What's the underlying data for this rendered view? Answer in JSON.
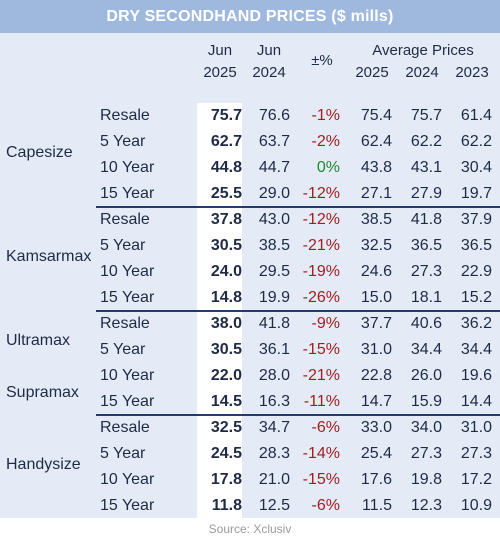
{
  "title": "DRY SECONDHAND PRICES ($ mills)",
  "header": {
    "jun_2025": [
      "Jun",
      "2025"
    ],
    "jun_2024": [
      "Jun",
      "2024"
    ],
    "change": "±%",
    "average": "Average Prices",
    "avg_years": [
      "2025",
      "2024",
      "2023"
    ]
  },
  "groups": [
    {
      "labels": [
        "Capesize"
      ],
      "rows": [
        {
          "age": "Resale",
          "jun25": "75.7",
          "jun24": "76.6",
          "chg": "-1%",
          "a25": "75.4",
          "a24": "75.7",
          "a23": "61.4"
        },
        {
          "age": "5 Year",
          "jun25": "62.7",
          "jun24": "63.7",
          "chg": "-2%",
          "a25": "62.4",
          "a24": "62.2",
          "a23": "62.2"
        },
        {
          "age": "10 Year",
          "jun25": "44.8",
          "jun24": "44.7",
          "chg": "0%",
          "a25": "43.8",
          "a24": "43.1",
          "a23": "30.4"
        },
        {
          "age": "15 Year",
          "jun25": "25.5",
          "jun24": "29.0",
          "chg": "-12%",
          "a25": "27.1",
          "a24": "27.9",
          "a23": "19.7"
        }
      ]
    },
    {
      "labels": [
        "Kamsarmax"
      ],
      "rows": [
        {
          "age": "Resale",
          "jun25": "37.8",
          "jun24": "43.0",
          "chg": "-12%",
          "a25": "38.5",
          "a24": "41.8",
          "a23": "37.9"
        },
        {
          "age": "5 Year",
          "jun25": "30.5",
          "jun24": "38.5",
          "chg": "-21%",
          "a25": "32.5",
          "a24": "36.5",
          "a23": "36.5"
        },
        {
          "age": "10 Year",
          "jun25": "24.0",
          "jun24": "29.5",
          "chg": "-19%",
          "a25": "24.6",
          "a24": "27.3",
          "a23": "22.9"
        },
        {
          "age": "15 Year",
          "jun25": "14.8",
          "jun24": "19.9",
          "chg": "-26%",
          "a25": "15.0",
          "a24": "18.1",
          "a23": "15.2"
        }
      ]
    },
    {
      "labels": [
        "Ultramax",
        "Supramax"
      ],
      "rows": [
        {
          "age": "Resale",
          "jun25": "38.0",
          "jun24": "41.8",
          "chg": "-9%",
          "a25": "37.7",
          "a24": "40.6",
          "a23": "36.2"
        },
        {
          "age": "5 Year",
          "jun25": "30.5",
          "jun24": "36.1",
          "chg": "-15%",
          "a25": "31.0",
          "a24": "34.4",
          "a23": "34.4"
        },
        {
          "age": "10 Year",
          "jun25": "22.0",
          "jun24": "28.0",
          "chg": "-21%",
          "a25": "22.8",
          "a24": "26.0",
          "a23": "19.6"
        },
        {
          "age": "15 Year",
          "jun25": "14.5",
          "jun24": "16.3",
          "chg": "-11%",
          "a25": "14.7",
          "a24": "15.9",
          "a23": "14.4"
        }
      ]
    },
    {
      "labels": [
        "Handysize"
      ],
      "rows": [
        {
          "age": "Resale",
          "jun25": "32.5",
          "jun24": "34.7",
          "chg": "-6%",
          "a25": "33.0",
          "a24": "34.0",
          "a23": "31.0"
        },
        {
          "age": "5 Year",
          "jun25": "24.5",
          "jun24": "28.3",
          "chg": "-14%",
          "a25": "25.4",
          "a24": "27.3",
          "a23": "27.3"
        },
        {
          "age": "10 Year",
          "jun25": "17.8",
          "jun24": "21.0",
          "chg": "-15%",
          "a25": "17.6",
          "a24": "19.8",
          "a23": "17.2"
        },
        {
          "age": "15 Year",
          "jun25": "11.8",
          "jun24": "12.5",
          "chg": "-6%",
          "a25": "11.5",
          "a24": "12.3",
          "a23": "10.9"
        }
      ]
    }
  ],
  "source": "Source: Xclusiv",
  "colors": {
    "title_bg": "#9fb8de",
    "panel_bg": "#e4ebf7",
    "negative": "#a01e1e",
    "zero": "#1f8a2e",
    "separator": "#243a73"
  }
}
